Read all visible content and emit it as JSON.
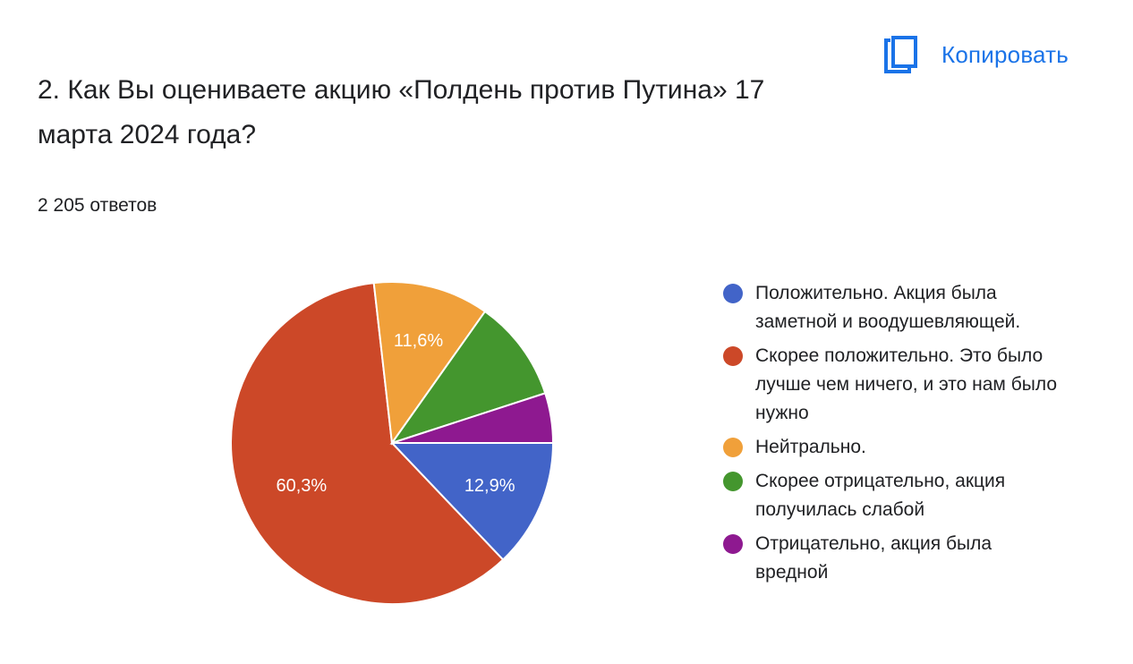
{
  "question": {
    "title": "2. Как Вы оцениваете акцию «Полдень против Путина» 17 марта 2024 года?",
    "responses": "2 205 ответов"
  },
  "toolbar": {
    "copy_label": "Копировать",
    "copy_icon": "copy-icon",
    "accent": "#1a73e8"
  },
  "chart_data": {
    "type": "pie",
    "labels": [
      "Положительно. Акция была заметной и воодушевляющей.",
      "Скорее положительно. Это было лучше чем ничего, и это нам было нужно",
      "Нейтрально.",
      "Скорее отрицательно, акция получилась слабой",
      "Отрицательно, акция была вредной"
    ],
    "values": [
      12.9,
      60.3,
      11.6,
      10.2,
      5.0
    ],
    "data_labels": [
      "12,9%",
      "60,3%",
      "11,6%",
      "",
      ""
    ],
    "colors": [
      "#4264c8",
      "#cc4828",
      "#f0a03a",
      "#44962e",
      "#8e1990"
    ],
    "legend_position": "right"
  }
}
